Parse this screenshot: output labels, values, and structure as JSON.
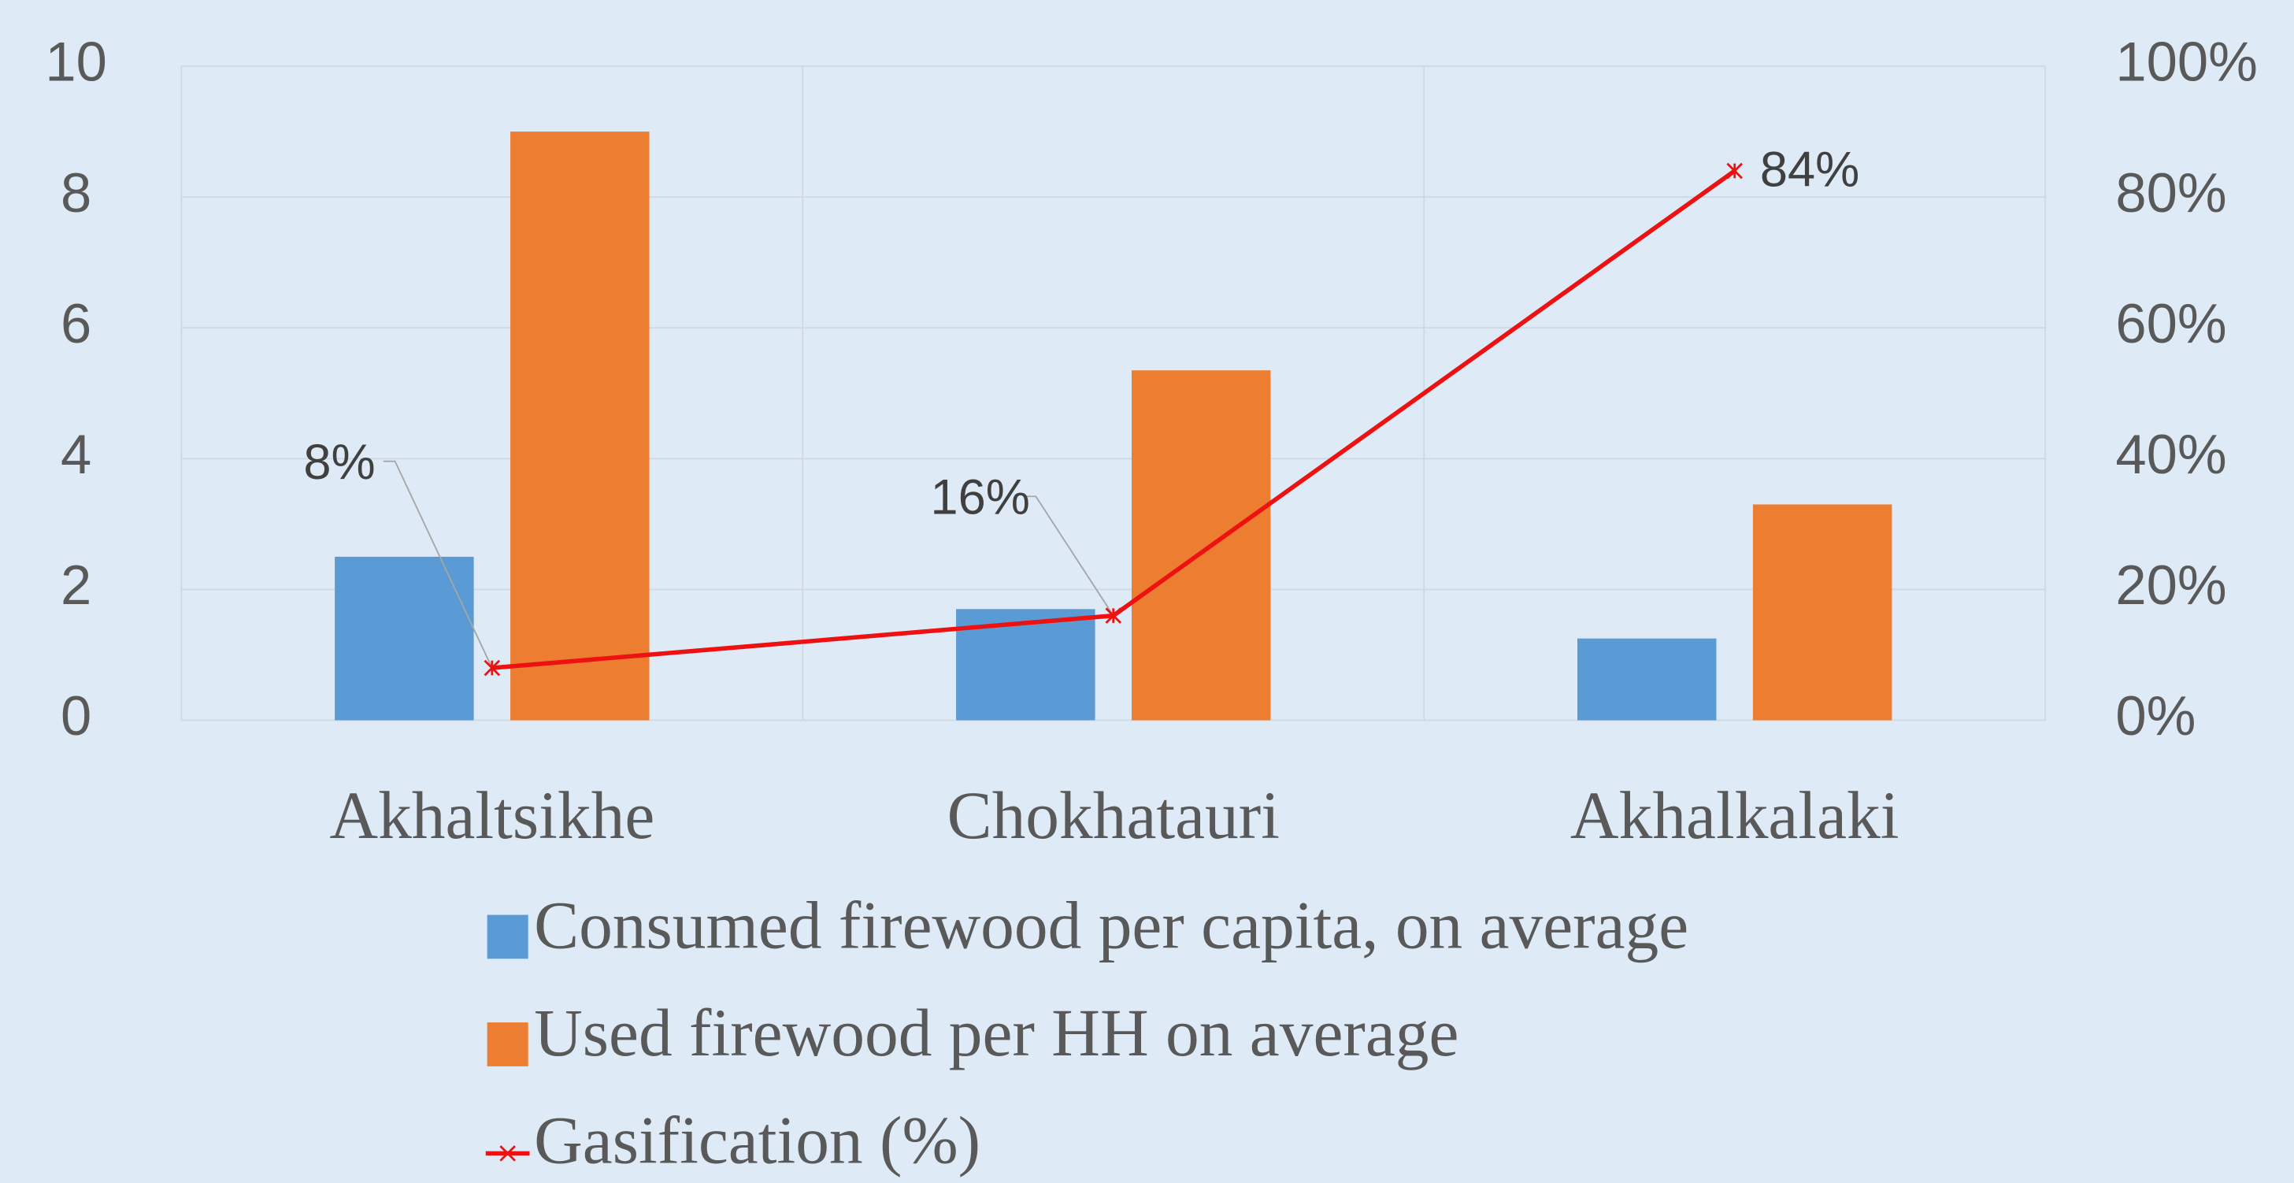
{
  "chart_data": {
    "type": "bar",
    "categories": [
      "Akhaltsikhe",
      "Chokhatauri",
      "Akhalkalaki"
    ],
    "series": [
      {
        "name": "Consumed firewood per capita, on average",
        "color": "#5b9bd5",
        "values": [
          2.5,
          1.7,
          1.25
        ]
      },
      {
        "name": "Used firewood per HH on average",
        "color": "#ed7d31",
        "values": [
          9,
          5.35,
          3.3
        ]
      },
      {
        "name": "Gasification (%)",
        "color": "#ee1111",
        "type": "line",
        "axis": "y2",
        "values": [
          8,
          16,
          84
        ],
        "value_labels": [
          "8%",
          "16%",
          "84%"
        ]
      }
    ],
    "ylim": [
      0,
      10
    ],
    "yticks": [
      0,
      2,
      4,
      6,
      8,
      10
    ],
    "y2lim": [
      0,
      100
    ],
    "y2ticks": [
      {
        "value": 0,
        "label": "0%"
      },
      {
        "value": 20,
        "label": "20%"
      },
      {
        "value": 40,
        "label": "40%"
      },
      {
        "value": 60,
        "label": "60%"
      },
      {
        "value": 80,
        "label": "80%"
      },
      {
        "value": 100,
        "label": "100%"
      }
    ],
    "grid": true,
    "legend": "bottom"
  }
}
